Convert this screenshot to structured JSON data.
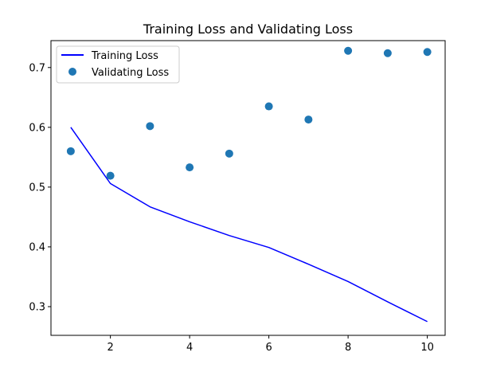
{
  "chart_data": {
    "type": "line",
    "title": "Training Loss and Validating Loss",
    "xlabel": "",
    "ylabel": "",
    "xlim": [
      0.5,
      10.45
    ],
    "ylim": [
      0.252,
      0.745
    ],
    "xticks": [
      2,
      4,
      6,
      8,
      10
    ],
    "yticks": [
      0.3,
      0.4,
      0.5,
      0.6,
      0.7
    ],
    "xtick_labels": [
      "2",
      "4",
      "6",
      "8",
      "10"
    ],
    "ytick_labels": [
      "0.3",
      "0.4",
      "0.5",
      "0.6",
      "0.7"
    ],
    "grid": false,
    "legend": {
      "placement": "upper-left"
    },
    "series": [
      {
        "name": "Training Loss",
        "kind": "line",
        "color": "#0000ff",
        "x": [
          1,
          2,
          3,
          4,
          5,
          6,
          7,
          8,
          9,
          10
        ],
        "values": [
          0.6,
          0.506,
          0.467,
          0.442,
          0.419,
          0.399,
          0.371,
          0.342,
          0.308,
          0.275
        ]
      },
      {
        "name": "Validating Loss",
        "kind": "scatter",
        "color": "#1f77b4",
        "x": [
          1,
          2,
          3,
          4,
          5,
          6,
          7,
          8,
          9,
          10
        ],
        "values": [
          0.56,
          0.519,
          0.602,
          0.533,
          0.556,
          0.635,
          0.613,
          0.728,
          0.724,
          0.726
        ]
      }
    ]
  }
}
